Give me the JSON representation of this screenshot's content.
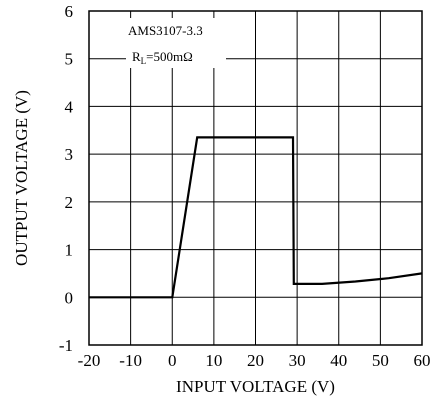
{
  "chart_data": {
    "type": "line",
    "xlabel": "INPUT VOLTAGE (V)",
    "ylabel": "OUTPUT VOLTAGE (V)",
    "xlim": [
      -20,
      60
    ],
    "ylim": [
      -1,
      6
    ],
    "xticks": [
      -20,
      -10,
      0,
      10,
      20,
      30,
      40,
      50,
      60
    ],
    "yticks": [
      -1,
      0,
      1,
      2,
      3,
      4,
      5,
      6
    ],
    "grid": true,
    "annotation": {
      "part": "AMS3107-3.3",
      "load_prefix": "R",
      "load_sub": "L",
      "load_value": "=500mΩ"
    },
    "series": [
      {
        "x": [
          -20,
          0,
          6,
          29,
          29.2,
          36,
          44,
          52,
          60
        ],
        "y": [
          0,
          0,
          3.35,
          3.35,
          0.28,
          0.28,
          0.33,
          0.4,
          0.5
        ]
      }
    ]
  }
}
